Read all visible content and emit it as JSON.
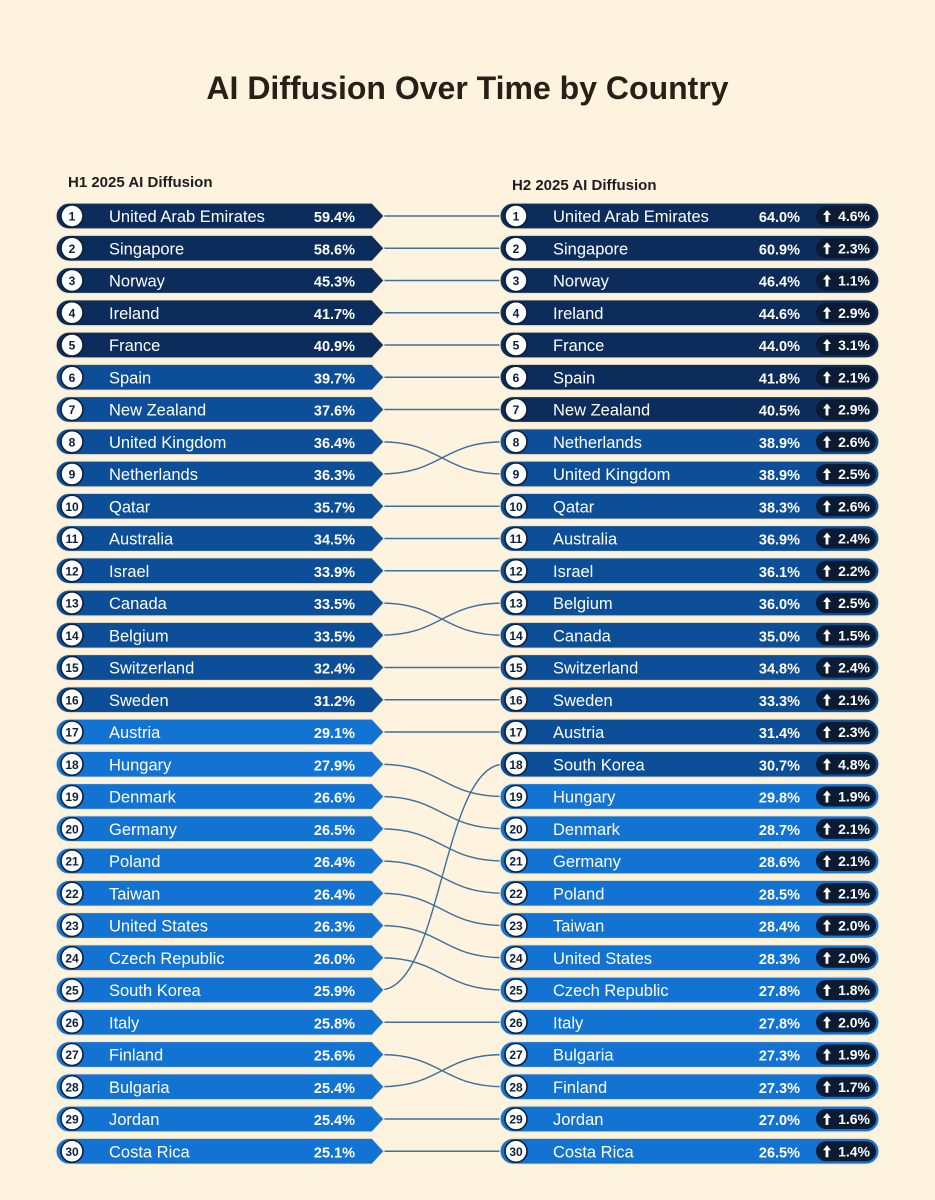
{
  "title": "AI Diffusion Over Time by Country",
  "colors": {
    "background": "#fdf3df",
    "dark": "#0c2d5c",
    "mid": "#0d4e98",
    "light": "#1273d2",
    "connector": "#3e6f9e"
  },
  "chart_data": {
    "type": "table",
    "title": "AI Diffusion Over Time by Country",
    "left": {
      "label": "H1 2025 AI Diffusion",
      "rows": [
        {
          "rank": 1,
          "country": "United Arab Emirates",
          "value": "59.4%"
        },
        {
          "rank": 2,
          "country": "Singapore",
          "value": "58.6%"
        },
        {
          "rank": 3,
          "country": "Norway",
          "value": "45.3%"
        },
        {
          "rank": 4,
          "country": "Ireland",
          "value": "41.7%"
        },
        {
          "rank": 5,
          "country": "France",
          "value": "40.9%"
        },
        {
          "rank": 6,
          "country": "Spain",
          "value": "39.7%"
        },
        {
          "rank": 7,
          "country": "New Zealand",
          "value": "37.6%"
        },
        {
          "rank": 8,
          "country": "United Kingdom",
          "value": "36.4%"
        },
        {
          "rank": 9,
          "country": "Netherlands",
          "value": "36.3%"
        },
        {
          "rank": 10,
          "country": "Qatar",
          "value": "35.7%"
        },
        {
          "rank": 11,
          "country": "Australia",
          "value": "34.5%"
        },
        {
          "rank": 12,
          "country": "Israel",
          "value": "33.9%"
        },
        {
          "rank": 13,
          "country": "Canada",
          "value": "33.5%"
        },
        {
          "rank": 14,
          "country": "Belgium",
          "value": "33.5%"
        },
        {
          "rank": 15,
          "country": "Switzerland",
          "value": "32.4%"
        },
        {
          "rank": 16,
          "country": "Sweden",
          "value": "31.2%"
        },
        {
          "rank": 17,
          "country": "Austria",
          "value": "29.1%"
        },
        {
          "rank": 18,
          "country": "Hungary",
          "value": "27.9%"
        },
        {
          "rank": 19,
          "country": "Denmark",
          "value": "26.6%"
        },
        {
          "rank": 20,
          "country": "Germany",
          "value": "26.5%"
        },
        {
          "rank": 21,
          "country": "Poland",
          "value": "26.4%"
        },
        {
          "rank": 22,
          "country": "Taiwan",
          "value": "26.4%"
        },
        {
          "rank": 23,
          "country": "United States",
          "value": "26.3%"
        },
        {
          "rank": 24,
          "country": "Czech Republic",
          "value": "26.0%"
        },
        {
          "rank": 25,
          "country": "South Korea",
          "value": "25.9%"
        },
        {
          "rank": 26,
          "country": "Italy",
          "value": "25.8%"
        },
        {
          "rank": 27,
          "country": "Finland",
          "value": "25.6%"
        },
        {
          "rank": 28,
          "country": "Bulgaria",
          "value": "25.4%"
        },
        {
          "rank": 29,
          "country": "Jordan",
          "value": "25.4%"
        },
        {
          "rank": 30,
          "country": "Costa Rica",
          "value": "25.1%"
        }
      ]
    },
    "right": {
      "label": "H2 2025 AI Diffusion",
      "rows": [
        {
          "rank": 1,
          "country": "United Arab Emirates",
          "value": "64.0%",
          "change": "4.6%"
        },
        {
          "rank": 2,
          "country": "Singapore",
          "value": "60.9%",
          "change": "2.3%"
        },
        {
          "rank": 3,
          "country": "Norway",
          "value": "46.4%",
          "change": "1.1%"
        },
        {
          "rank": 4,
          "country": "Ireland",
          "value": "44.6%",
          "change": "2.9%"
        },
        {
          "rank": 5,
          "country": "France",
          "value": "44.0%",
          "change": "3.1%"
        },
        {
          "rank": 6,
          "country": "Spain",
          "value": "41.8%",
          "change": "2.1%"
        },
        {
          "rank": 7,
          "country": "New Zealand",
          "value": "40.5%",
          "change": "2.9%"
        },
        {
          "rank": 8,
          "country": "Netherlands",
          "value": "38.9%",
          "change": "2.6%"
        },
        {
          "rank": 9,
          "country": "United Kingdom",
          "value": "38.9%",
          "change": "2.5%"
        },
        {
          "rank": 10,
          "country": "Qatar",
          "value": "38.3%",
          "change": "2.6%"
        },
        {
          "rank": 11,
          "country": "Australia",
          "value": "36.9%",
          "change": "2.4%"
        },
        {
          "rank": 12,
          "country": "Israel",
          "value": "36.1%",
          "change": "2.2%"
        },
        {
          "rank": 13,
          "country": "Belgium",
          "value": "36.0%",
          "change": "2.5%"
        },
        {
          "rank": 14,
          "country": "Canada",
          "value": "35.0%",
          "change": "1.5%"
        },
        {
          "rank": 15,
          "country": "Switzerland",
          "value": "34.8%",
          "change": "2.4%"
        },
        {
          "rank": 16,
          "country": "Sweden",
          "value": "33.3%",
          "change": "2.1%"
        },
        {
          "rank": 17,
          "country": "Austria",
          "value": "31.4%",
          "change": "2.3%"
        },
        {
          "rank": 18,
          "country": "South Korea",
          "value": "30.7%",
          "change": "4.8%"
        },
        {
          "rank": 19,
          "country": "Hungary",
          "value": "29.8%",
          "change": "1.9%"
        },
        {
          "rank": 20,
          "country": "Denmark",
          "value": "28.7%",
          "change": "2.1%"
        },
        {
          "rank": 21,
          "country": "Germany",
          "value": "28.6%",
          "change": "2.1%"
        },
        {
          "rank": 22,
          "country": "Poland",
          "value": "28.5%",
          "change": "2.1%"
        },
        {
          "rank": 23,
          "country": "Taiwan",
          "value": "28.4%",
          "change": "2.0%"
        },
        {
          "rank": 24,
          "country": "United States",
          "value": "28.3%",
          "change": "2.0%"
        },
        {
          "rank": 25,
          "country": "Czech Republic",
          "value": "27.8%",
          "change": "1.8%"
        },
        {
          "rank": 26,
          "country": "Italy",
          "value": "27.8%",
          "change": "2.0%"
        },
        {
          "rank": 27,
          "country": "Bulgaria",
          "value": "27.3%",
          "change": "1.9%"
        },
        {
          "rank": 28,
          "country": "Finland",
          "value": "27.3%",
          "change": "1.7%"
        },
        {
          "rank": 29,
          "country": "Jordan",
          "value": "27.0%",
          "change": "1.6%"
        },
        {
          "rank": 30,
          "country": "Costa Rica",
          "value": "26.5%",
          "change": "1.4%"
        }
      ]
    }
  }
}
